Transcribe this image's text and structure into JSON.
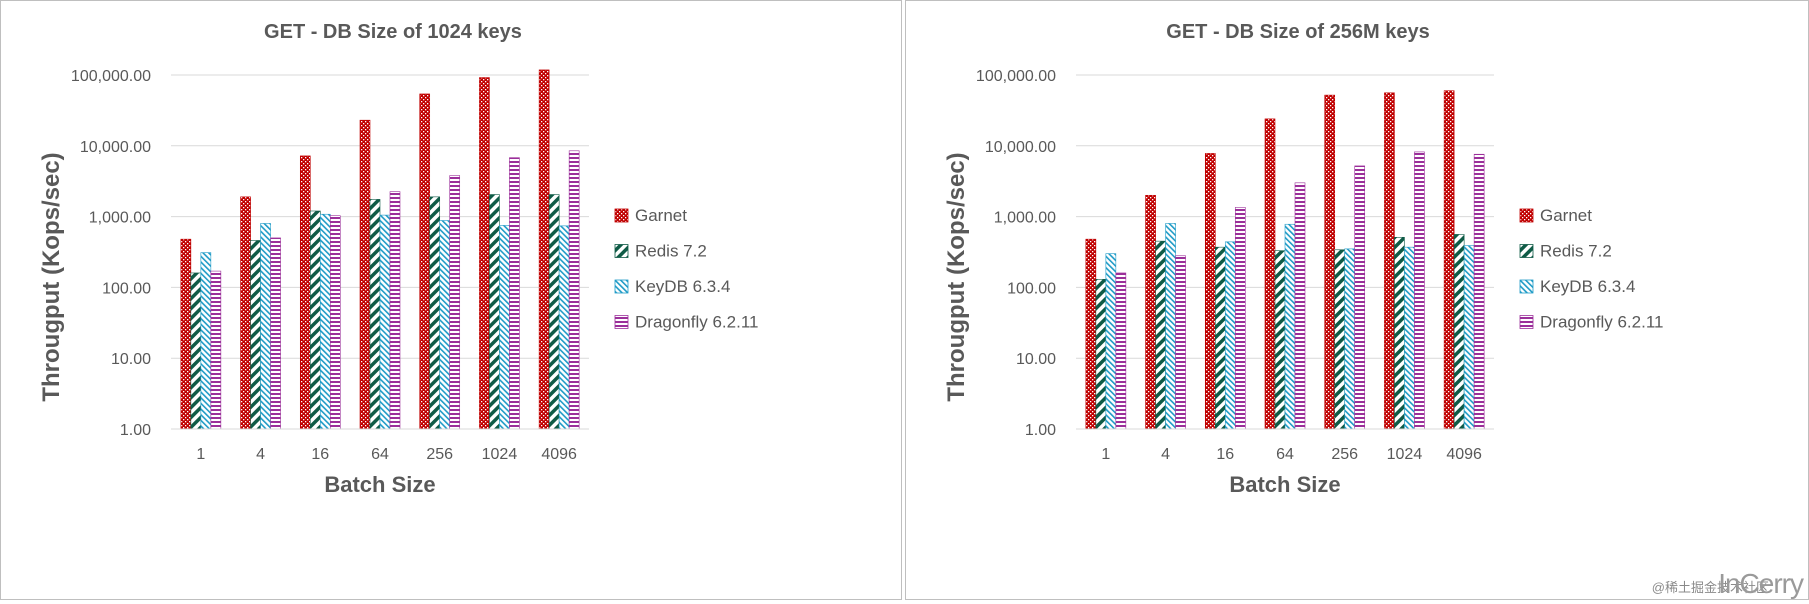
{
  "chart_data": [
    {
      "type": "bar",
      "title": "GET - DB Size of 1024 keys",
      "xlabel": "Batch Size",
      "ylabel": "Througput (Kops/sec)",
      "yscale": "log",
      "ylim": [
        1,
        100000
      ],
      "yticks": [
        "1.00",
        "10.00",
        "100.00",
        "1,000.00",
        "10,000.00",
        "100,000.00"
      ],
      "categories": [
        "1",
        "4",
        "16",
        "64",
        "256",
        "1024",
        "4096"
      ],
      "grid": true,
      "legend_position": "right",
      "series": [
        {
          "name": "Garnet",
          "values": [
            480,
            1900,
            7200,
            23000,
            54000,
            92000,
            118000
          ]
        },
        {
          "name": "Redis 7.2",
          "values": [
            160,
            460,
            1200,
            1750,
            1900,
            2050,
            2050
          ]
        },
        {
          "name": "KeyDB 6.3.4",
          "values": [
            310,
            800,
            1080,
            1050,
            880,
            750,
            740
          ]
        },
        {
          "name": "Dragonfly 6.2.11",
          "values": [
            170,
            500,
            1030,
            2250,
            3800,
            6800,
            8500
          ]
        }
      ]
    },
    {
      "type": "bar",
      "title": "GET - DB Size of 256M keys",
      "xlabel": "Batch Size",
      "ylabel": "Througput (Kops/sec)",
      "yscale": "log",
      "ylim": [
        1,
        100000
      ],
      "yticks": [
        "1.00",
        "10.00",
        "100.00",
        "1,000.00",
        "10,000.00",
        "100,000.00"
      ],
      "categories": [
        "1",
        "4",
        "16",
        "64",
        "256",
        "1024",
        "4096"
      ],
      "grid": true,
      "legend_position": "right",
      "series": [
        {
          "name": "Garnet",
          "values": [
            480,
            2000,
            7800,
            24000,
            52000,
            56000,
            60000
          ]
        },
        {
          "name": "Redis 7.2",
          "values": [
            130,
            450,
            370,
            330,
            340,
            510,
            560
          ]
        },
        {
          "name": "KeyDB 6.3.4",
          "values": [
            300,
            800,
            440,
            780,
            350,
            370,
            390
          ]
        },
        {
          "name": "Dragonfly 6.2.11",
          "values": [
            160,
            280,
            1350,
            3000,
            5200,
            8200,
            7600
          ]
        }
      ]
    }
  ],
  "colors": {
    "Garnet": "#c00000",
    "Redis 7.2": "#0f5b46",
    "KeyDB 6.3.4": "#1f9bc7",
    "Dragonfly 6.2.11": "#9b2f9a"
  },
  "watermark": {
    "text": "@稀土掘金技术社区",
    "logo": "InCerry"
  }
}
